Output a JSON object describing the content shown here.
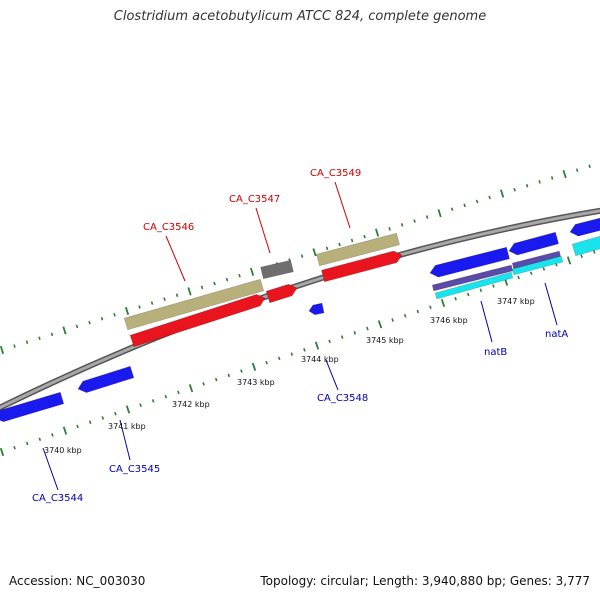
{
  "header": {
    "title": "Clostridium acetobutylicum ATCC 824, complete genome"
  },
  "footer": {
    "accession": "Accession: NC_003030",
    "topology": "Topology: circular; Length: 3,940,880 bp; Genes: 3,777"
  },
  "colors": {
    "backbone": "#8c8c8c",
    "tick_marks": "#2e7d32",
    "forward_label": "#cc0000",
    "reverse_label": "#0000aa",
    "cds_forward": "#e8141e",
    "cds_reverse": "#1a1aee",
    "rna_forward": "#b8b07a",
    "other_forward": "#6e6e6e",
    "cyan_feature": "#18e4ee",
    "purple_feature": "#5a4aaa"
  },
  "scale": {
    "tick_labels": [
      "3740 kbp",
      "3741 kbp",
      "3742 kbp",
      "3743 kbp",
      "3744 kbp",
      "3745 kbp",
      "3746 kbp",
      "3747 kbp"
    ]
  },
  "gene_labels": {
    "forward": [
      "CA_C3546",
      "CA_C3547",
      "CA_C3549"
    ],
    "reverse": [
      "CA_C3544",
      "CA_C3545",
      "CA_C3548",
      "natB",
      "natA"
    ]
  }
}
